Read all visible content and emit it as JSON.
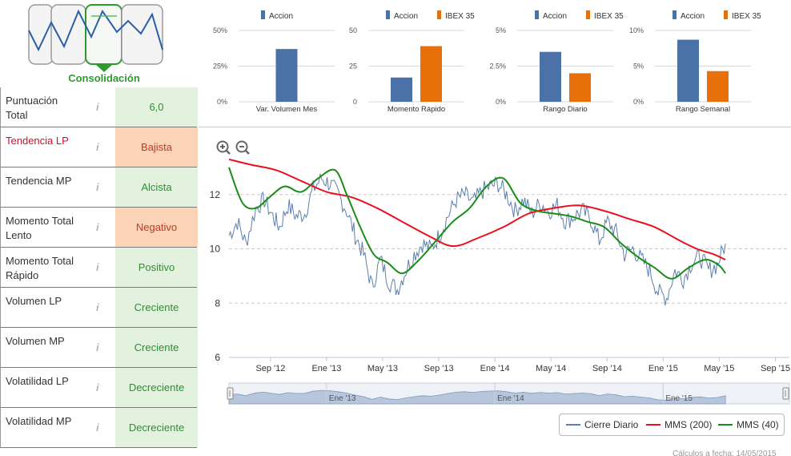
{
  "phase": {
    "label": "Consolidación",
    "icons": [
      "trend-down-phase-icon",
      "trend-up-phase-icon",
      "consolidation-phase-icon",
      "trend-flat-phase-icon"
    ],
    "selected_index": 2
  },
  "metrics": [
    {
      "label": "Puntuación Total",
      "value": "6,0",
      "status": "neutral",
      "label_red": false
    },
    {
      "label": "Tendencia LP",
      "value": "Bajista",
      "status": "orange",
      "label_red": true
    },
    {
      "label": "Tendencia MP",
      "value": "Alcista",
      "status": "green",
      "label_red": false
    },
    {
      "label": "Momento Total Lento",
      "value": "Negativo",
      "status": "orange",
      "label_red": false
    },
    {
      "label": "Momento Total Rápido",
      "value": "Positivo",
      "status": "green",
      "label_red": false
    },
    {
      "label": "Volumen LP",
      "value": "Creciente",
      "status": "green",
      "label_red": false
    },
    {
      "label": "Volumen MP",
      "value": "Creciente",
      "status": "green",
      "label_red": false
    },
    {
      "label": "Volatilidad LP",
      "value": "Decreciente",
      "status": "green",
      "label_red": false
    },
    {
      "label": "Volatilidad MP",
      "value": "Decreciente",
      "status": "green",
      "label_red": false
    }
  ],
  "colors": {
    "accion": "#4a72a8",
    "ibex": "#e8700a",
    "price": "#5b7fae",
    "mms200": "#e8101e",
    "mms40": "#1a8c1a",
    "green_cell": "#e2f2df",
    "orange_cell": "#fbd3b6"
  },
  "chart_data": [
    {
      "type": "bar",
      "title": "",
      "xlabel": "Var. Volumen Mes",
      "legend": [
        "Accion"
      ],
      "categories": [
        "Var. Volumen Mes"
      ],
      "series": [
        {
          "name": "Accion",
          "values": [
            37
          ]
        }
      ],
      "yticks": [
        "50%",
        "25%",
        "0%"
      ],
      "ylim": [
        0,
        50
      ]
    },
    {
      "type": "bar",
      "title": "",
      "xlabel": "Momento Rápido",
      "legend": [
        "Accion",
        "IBEX 35"
      ],
      "categories": [
        "Momento Rápido"
      ],
      "series": [
        {
          "name": "Accion",
          "values": [
            17
          ]
        },
        {
          "name": "IBEX 35",
          "values": [
            39
          ]
        }
      ],
      "yticks": [
        "50",
        "25",
        "0"
      ],
      "ylim": [
        0,
        50
      ]
    },
    {
      "type": "bar",
      "title": "",
      "xlabel": "Rango Diario",
      "legend": [
        "Accion",
        "IBEX 35"
      ],
      "categories": [
        "Rango Diario"
      ],
      "series": [
        {
          "name": "Accion",
          "values": [
            3.5
          ]
        },
        {
          "name": "IBEX 35",
          "values": [
            2.0
          ]
        }
      ],
      "yticks": [
        "5%",
        "2.5%",
        "0%"
      ],
      "ylim": [
        0,
        5
      ]
    },
    {
      "type": "bar",
      "title": "",
      "xlabel": "Rango Semanal",
      "legend": [
        "Accion",
        "IBEX 35"
      ],
      "categories": [
        "Rango Semanal"
      ],
      "series": [
        {
          "name": "Accion",
          "values": [
            8.7
          ]
        },
        {
          "name": "IBEX 35",
          "values": [
            4.3
          ]
        }
      ],
      "yticks": [
        "10%",
        "5%",
        "0%"
      ],
      "ylim": [
        0,
        10
      ]
    },
    {
      "type": "line",
      "title": "",
      "xlabel": "",
      "ylabel": "",
      "x_ticks": [
        "Sep '12",
        "Ene '13",
        "May '13",
        "Sep '13",
        "Ene '14",
        "May '14",
        "Sep '14",
        "Ene '15",
        "May '15",
        "Sep '15"
      ],
      "y_ticks": [
        6,
        8,
        10,
        12
      ],
      "ylim": [
        6,
        13.5
      ],
      "xlim": [
        2012.42,
        2015.75
      ],
      "series": [
        {
          "name": "Cierre Diario",
          "color": "#5b7fae",
          "x": [
            2012.42,
            2012.47,
            2012.52,
            2012.58,
            2012.63,
            2012.68,
            2012.72,
            2012.77,
            2012.82,
            2012.87,
            2012.92,
            2012.97,
            2013.02,
            2013.07,
            2013.12,
            2013.17,
            2013.22,
            2013.27,
            2013.32,
            2013.37,
            2013.42,
            2013.47,
            2013.52,
            2013.57,
            2013.62,
            2013.67,
            2013.72,
            2013.77,
            2013.82,
            2013.87,
            2013.92,
            2013.97,
            2014.02,
            2014.07,
            2014.12,
            2014.17,
            2014.22,
            2014.27,
            2014.32,
            2014.37,
            2014.42,
            2014.47,
            2014.52,
            2014.57,
            2014.62,
            2014.67,
            2014.72,
            2014.77,
            2014.82,
            2014.87,
            2014.92,
            2014.97,
            2015.02,
            2015.07,
            2015.12,
            2015.17,
            2015.22,
            2015.27,
            2015.32,
            2015.37
          ],
          "y": [
            10.5,
            11.0,
            10.2,
            11.5,
            11.8,
            11.2,
            10.8,
            11.6,
            11.2,
            11.3,
            12.2,
            12.6,
            12.4,
            12.0,
            11.4,
            10.5,
            9.8,
            8.6,
            9.6,
            8.8,
            8.5,
            9.2,
            9.8,
            10.2,
            10.0,
            10.5,
            11.2,
            11.8,
            12.0,
            11.7,
            12.1,
            12.3,
            12.4,
            12.0,
            11.4,
            11.8,
            11.3,
            11.7,
            11.4,
            11.6,
            11.0,
            11.2,
            11.4,
            11.1,
            10.3,
            11.0,
            10.6,
            9.8,
            10.0,
            9.6,
            9.2,
            8.4,
            8.2,
            9.2,
            8.9,
            9.5,
            9.7,
            9.2,
            9.4,
            10.2
          ]
        },
        {
          "name": "MMS (200)",
          "color": "#e8101e",
          "x": [
            2012.42,
            2012.55,
            2012.7,
            2012.85,
            2013.0,
            2013.15,
            2013.3,
            2013.45,
            2013.6,
            2013.75,
            2013.9,
            2014.05,
            2014.2,
            2014.35,
            2014.5,
            2014.65,
            2014.8,
            2014.95,
            2015.1,
            2015.2,
            2015.3,
            2015.37
          ],
          "y": [
            13.3,
            13.1,
            12.9,
            12.5,
            12.1,
            11.9,
            11.5,
            11.0,
            10.5,
            10.1,
            10.4,
            10.8,
            11.3,
            11.5,
            11.6,
            11.4,
            11.1,
            10.8,
            10.3,
            10.0,
            9.8,
            9.6
          ]
        },
        {
          "name": "MMS (40)",
          "color": "#1a8c1a",
          "x": [
            2012.42,
            2012.5,
            2012.58,
            2012.66,
            2012.75,
            2012.85,
            2012.95,
            2013.05,
            2013.12,
            2013.2,
            2013.28,
            2013.36,
            2013.45,
            2013.55,
            2013.65,
            2013.75,
            2013.85,
            2013.95,
            2014.05,
            2014.15,
            2014.25,
            2014.35,
            2014.45,
            2014.55,
            2014.65,
            2014.75,
            2014.85,
            2014.95,
            2015.05,
            2015.15,
            2015.25,
            2015.33,
            2015.37
          ],
          "y": [
            13.0,
            11.7,
            11.5,
            11.9,
            12.3,
            12.1,
            12.6,
            12.9,
            12.0,
            10.8,
            9.8,
            9.5,
            9.1,
            9.6,
            10.3,
            11.0,
            11.5,
            12.3,
            12.6,
            11.7,
            11.4,
            11.3,
            11.2,
            11.0,
            10.8,
            10.2,
            9.7,
            9.3,
            8.9,
            9.3,
            9.6,
            9.4,
            9.1
          ]
        }
      ]
    }
  ],
  "navigator": {
    "labels": [
      "Ene '13",
      "Ene '14",
      "Ene '15"
    ]
  },
  "legend": {
    "items": [
      "Cierre Diario",
      "MMS (200)",
      "MMS (40)"
    ]
  },
  "footer": {
    "text": "Cálculos a fecha: 14/05/2015"
  }
}
